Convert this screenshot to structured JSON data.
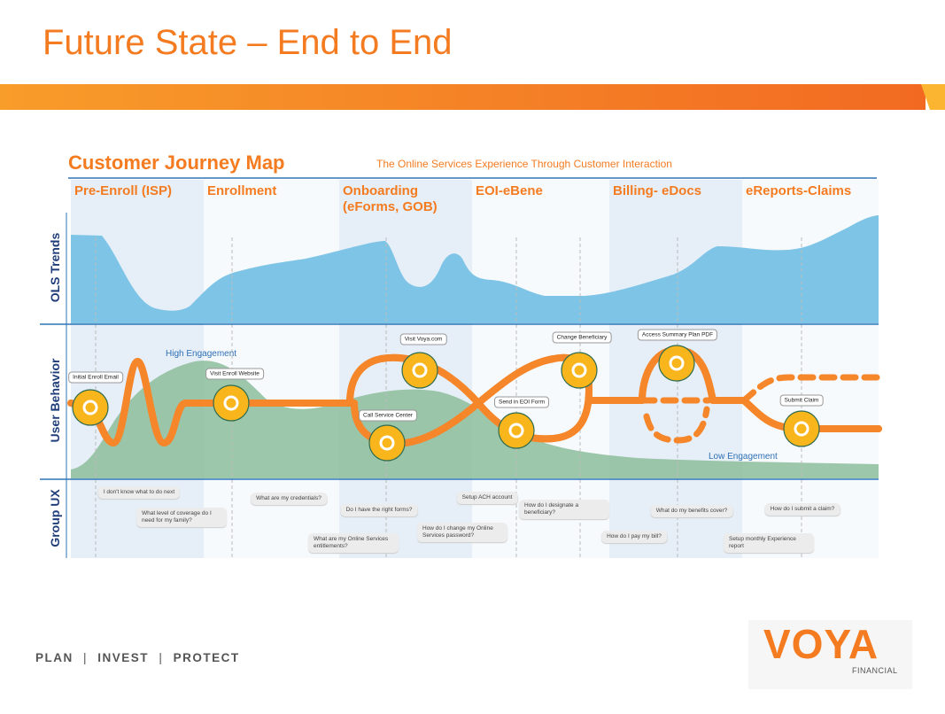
{
  "title": "Future State – End to End",
  "map": {
    "title": "Customer Journey Map",
    "subtitle": "The Online Services Experience Through Customer Interaction",
    "stages": [
      "Pre-Enroll (ISP)",
      "Enrollment",
      "Onboarding (eForms, GOB)",
      "EOI-eBene",
      "Billing- eDocs",
      "eReports-Claims"
    ],
    "rows": [
      "OLS Trends",
      "User Behavior",
      "Group UX"
    ],
    "engagement": [
      "High Engagement",
      "Low Engagement"
    ],
    "touchpoints": [
      "Initial Enroll Email",
      "Visit Enroll Website",
      "Visit Voya.com",
      "Call Service Center",
      "Send in EOI Form",
      "Change Beneficiary",
      "Access Summary Plan PDF",
      "Submit Claim"
    ],
    "questions": [
      "I don't know what to do next",
      "What level of coverage do I need for my family?",
      "What are my credentials?",
      "Do I have the right forms?",
      "What are my Online Services entitlements?",
      "Setup ACH account",
      "How do I change my Online Services password?",
      "How do I designate a beneficiary?",
      "How do I pay my bill?",
      "What do my benefits cover?",
      "How do I submit a claim?",
      "Setup monthly Experience report"
    ]
  },
  "footer": {
    "tagline": [
      "PLAN",
      "INVEST",
      "PROTECT"
    ]
  },
  "logo": {
    "name": "VOYA",
    "sub": "FINANCIAL"
  }
}
